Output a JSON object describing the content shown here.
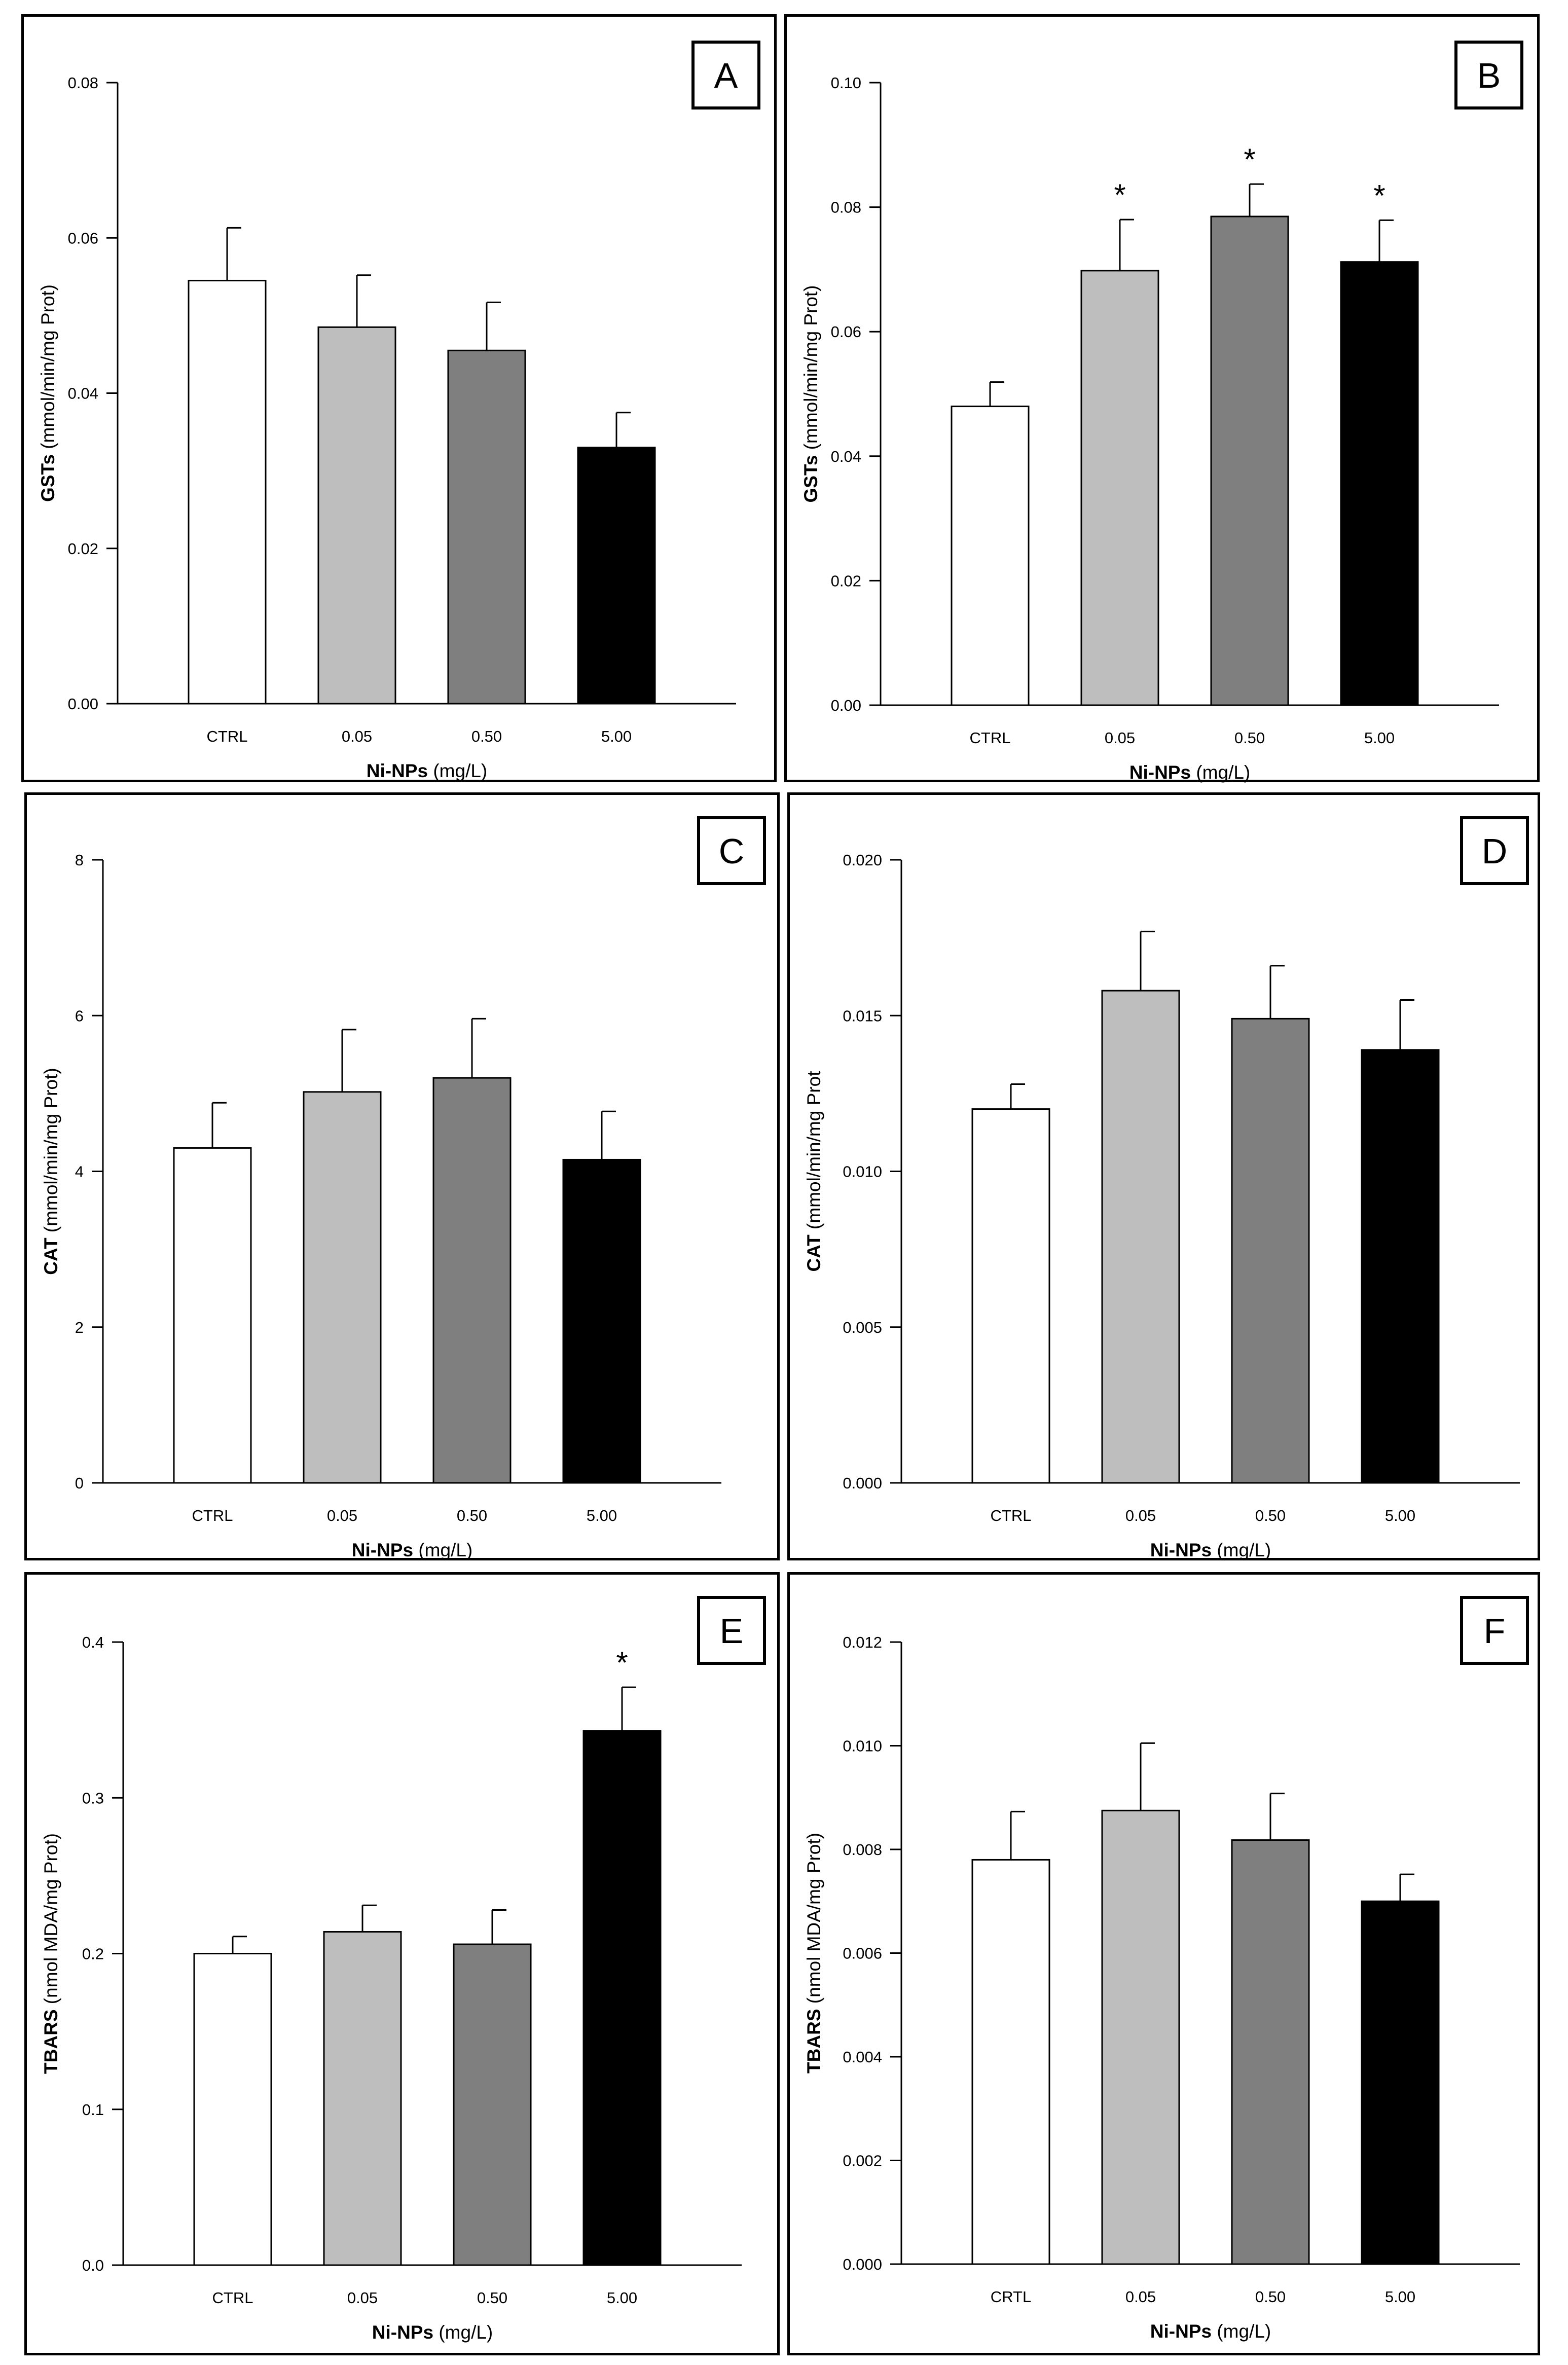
{
  "chart_data": [
    {
      "type": "bar",
      "panel_label": "A",
      "categories": [
        "CTRL",
        "0.05",
        "0.50",
        "5.00"
      ],
      "values": [
        0.0545,
        0.0485,
        0.0455,
        0.033
      ],
      "errors": [
        0.0068,
        0.0067,
        0.0062,
        0.0045
      ],
      "significance": [
        "",
        "",
        "",
        ""
      ],
      "ylim": [
        0,
        0.08
      ],
      "yticks": [
        "0.00",
        "0.02",
        "0.04",
        "0.06",
        "0.08"
      ],
      "ylabel_bold": "GSTs",
      "ylabel_rest": " (mmol/min/mg Prot)",
      "xlabel_bold": "Ni-NPs",
      "xlabel_rest": " (mg/L)"
    },
    {
      "type": "bar",
      "panel_label": "B",
      "categories": [
        "CTRL",
        "0.05",
        "0.50",
        "5.00"
      ],
      "values": [
        0.048,
        0.0698,
        0.0785,
        0.0712
      ],
      "errors": [
        0.0039,
        0.0082,
        0.0052,
        0.0067
      ],
      "significance": [
        "",
        "*",
        "*",
        "*"
      ],
      "ylim": [
        0,
        0.1
      ],
      "yticks": [
        "0.00",
        "0.02",
        "0.04",
        "0.06",
        "0.08",
        "0.10"
      ],
      "ylabel_bold": "GSTs",
      "ylabel_rest": " (mmol/min/mg Prot)",
      "xlabel_bold": "Ni-NPs",
      "xlabel_rest": " (mg/L)"
    },
    {
      "type": "bar",
      "panel_label": "C",
      "categories": [
        "CTRL",
        "0.05",
        "0.50",
        "5.00"
      ],
      "values": [
        4.3,
        5.02,
        5.2,
        4.15
      ],
      "errors": [
        0.58,
        0.8,
        0.76,
        0.62
      ],
      "significance": [
        "",
        "",
        "",
        ""
      ],
      "ylim": [
        0,
        8
      ],
      "yticks": [
        "0",
        "2",
        "4",
        "6",
        "8"
      ],
      "ylabel_bold": "CAT",
      "ylabel_rest": " (mmol/min/mg Prot)",
      "xlabel_bold": "Ni-NPs",
      "xlabel_rest": " (mg/L)"
    },
    {
      "type": "bar",
      "panel_label": "D",
      "categories": [
        "CTRL",
        "0.05",
        "0.50",
        "5.00"
      ],
      "values": [
        0.012,
        0.0158,
        0.0149,
        0.0139
      ],
      "errors": [
        0.0008,
        0.0019,
        0.0017,
        0.0016
      ],
      "significance": [
        "",
        "",
        "",
        ""
      ],
      "ylim": [
        0,
        0.02
      ],
      "yticks": [
        "0.000",
        "0.005",
        "0.010",
        "0.015",
        "0.020"
      ],
      "ylabel_bold": "CAT",
      "ylabel_rest": " (mmol/min/mg Prot",
      "xlabel_bold": "Ni-NPs",
      "xlabel_rest": " (mg/L)"
    },
    {
      "type": "bar",
      "panel_label": "E",
      "categories": [
        "CTRL",
        "0.05",
        "0.50",
        "5.00"
      ],
      "values": [
        0.2,
        0.214,
        0.206,
        0.343
      ],
      "errors": [
        0.011,
        0.017,
        0.022,
        0.028
      ],
      "significance": [
        "",
        "",
        "",
        "*"
      ],
      "ylim": [
        0,
        0.4
      ],
      "yticks": [
        "0.0",
        "0.1",
        "0.2",
        "0.3",
        "0.4"
      ],
      "ylabel_bold": "TBARS",
      "ylabel_rest": " (nmol MDA/mg Prot)",
      "xlabel_bold": "Ni-NPs",
      "xlabel_rest": " (mg/L)"
    },
    {
      "type": "bar",
      "panel_label": "F",
      "categories": [
        "CRTL",
        "0.05",
        "0.50",
        "5.00"
      ],
      "values": [
        0.0078,
        0.00875,
        0.00818,
        0.007
      ],
      "errors": [
        0.00093,
        0.0013,
        0.0009,
        0.00052
      ],
      "significance": [
        "",
        "",
        "",
        ""
      ],
      "ylim": [
        0,
        0.012
      ],
      "yticks": [
        "0.000",
        "0.002",
        "0.004",
        "0.006",
        "0.008",
        "0.010",
        "0.012"
      ],
      "ylabel_bold": "TBARS",
      "ylabel_rest": " (nmol MDA/mg Prot)",
      "xlabel_bold": "Ni-NPs",
      "xlabel_rest": " (mg/L)"
    }
  ],
  "colors": {
    "bars": [
      "#ffffff",
      "#bebebe",
      "#7f7f7f",
      "#000000"
    ],
    "stroke": "#000000"
  }
}
